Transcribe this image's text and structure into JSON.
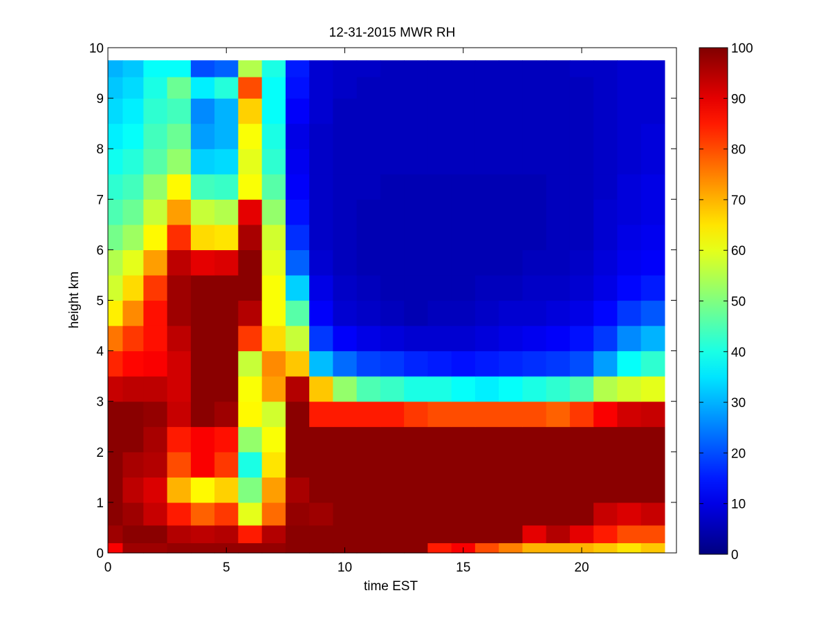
{
  "chart_data": {
    "type": "heatmap",
    "title": "12-31-2015 MWR RH",
    "xlabel": "time EST",
    "ylabel": "height km",
    "xlim": [
      0,
      24
    ],
    "ylim": [
      0,
      10
    ],
    "x_ticks": [
      0,
      5,
      10,
      15,
      20
    ],
    "y_ticks": [
      0,
      1,
      2,
      3,
      4,
      5,
      6,
      7,
      8,
      9,
      10
    ],
    "colorbar": {
      "min": 0,
      "max": 100,
      "ticks": [
        0,
        10,
        20,
        30,
        40,
        50,
        60,
        70,
        80,
        90,
        100
      ],
      "colormap": "jet"
    },
    "time_hours": [
      0.25,
      1.0,
      2.0,
      3.0,
      4.0,
      5.0,
      6.0,
      7.0,
      8.0,
      9.0,
      10.0,
      11.0,
      12.0,
      13.0,
      14.0,
      15.0,
      16.0,
      17.0,
      18.0,
      19.0,
      20.0,
      21.0,
      22.0,
      23.0
    ],
    "height_km": [
      0.05,
      0.35,
      0.75,
      1.25,
      1.75,
      2.25,
      2.75,
      3.25,
      3.75,
      4.25,
      4.75,
      5.25,
      5.75,
      6.25,
      6.75,
      7.25,
      7.75,
      8.25,
      8.75,
      9.25,
      9.6
    ],
    "rh_percent": [
      [
        88,
        97,
        97,
        98,
        98,
        98,
        98,
        98,
        99,
        99,
        99,
        99,
        99,
        99,
        85,
        88,
        80,
        75,
        70,
        70,
        70,
        68,
        65,
        68
      ],
      [
        97,
        99,
        99,
        95,
        94,
        95,
        85,
        95,
        99,
        99,
        99,
        99,
        99,
        99,
        99,
        99,
        99,
        99,
        90,
        95,
        90,
        85,
        80,
        80
      ],
      [
        99,
        97,
        93,
        85,
        78,
        82,
        60,
        77,
        98,
        97,
        99,
        99,
        99,
        99,
        99,
        99,
        99,
        99,
        99,
        99,
        99,
        93,
        91,
        93
      ],
      [
        99,
        94,
        91,
        70,
        63,
        67,
        50,
        72,
        96,
        99,
        99,
        99,
        99,
        99,
        99,
        99,
        99,
        99,
        99,
        99,
        99,
        99,
        99,
        99
      ],
      [
        99,
        96,
        95,
        80,
        88,
        82,
        40,
        65,
        99,
        99,
        99,
        99,
        99,
        99,
        99,
        99,
        99,
        99,
        99,
        99,
        99,
        99,
        99,
        99
      ],
      [
        99,
        99,
        96,
        85,
        88,
        86,
        52,
        62,
        99,
        99,
        99,
        99,
        99,
        99,
        99,
        99,
        99,
        99,
        99,
        99,
        99,
        99,
        99,
        99
      ],
      [
        99,
        99,
        98,
        93,
        99,
        97,
        63,
        58,
        99,
        85,
        85,
        85,
        85,
        82,
        80,
        80,
        80,
        80,
        80,
        78,
        82,
        88,
        92,
        93
      ],
      [
        93,
        94,
        94,
        92,
        99,
        99,
        62,
        72,
        95,
        68,
        52,
        45,
        43,
        40,
        40,
        38,
        36,
        38,
        40,
        42,
        45,
        55,
        58,
        60
      ],
      [
        84,
        87,
        88,
        92,
        99,
        99,
        57,
        74,
        68,
        31,
        23,
        19,
        18,
        16,
        15,
        14,
        15,
        16,
        17,
        18,
        20,
        28,
        38,
        42
      ],
      [
        76,
        82,
        86,
        94,
        99,
        99,
        82,
        66,
        57,
        18,
        12,
        10,
        9,
        8,
        8,
        8,
        9,
        10,
        11,
        12,
        14,
        18,
        26,
        30
      ],
      [
        64,
        74,
        86,
        97,
        99,
        99,
        95,
        62,
        46,
        12,
        8,
        7,
        6,
        5,
        6,
        6,
        7,
        8,
        8,
        9,
        10,
        13,
        18,
        21
      ],
      [
        58,
        66,
        82,
        97,
        99,
        99,
        99,
        62,
        33,
        10,
        7,
        6,
        5,
        5,
        5,
        5,
        6,
        6,
        7,
        7,
        8,
        10,
        13,
        15
      ],
      [
        55,
        60,
        72,
        94,
        90,
        91,
        99,
        60,
        22,
        8,
        6,
        5,
        5,
        5,
        5,
        5,
        5,
        5,
        6,
        6,
        7,
        9,
        11,
        12
      ],
      [
        49,
        53,
        63,
        83,
        66,
        65,
        96,
        58,
        17,
        7,
        6,
        5,
        5,
        5,
        5,
        5,
        5,
        5,
        5,
        6,
        6,
        8,
        10,
        11
      ],
      [
        45,
        48,
        57,
        72,
        57,
        55,
        90,
        52,
        14,
        7,
        6,
        5,
        5,
        5,
        5,
        5,
        5,
        5,
        5,
        6,
        6,
        8,
        9,
        10
      ],
      [
        42,
        44,
        52,
        63,
        44,
        43,
        62,
        46,
        12,
        7,
        6,
        6,
        5,
        5,
        5,
        5,
        5,
        5,
        5,
        6,
        6,
        7,
        9,
        10
      ],
      [
        39,
        41,
        46,
        52,
        33,
        34,
        60,
        42,
        11,
        7,
        6,
        6,
        6,
        6,
        6,
        6,
        6,
        6,
        6,
        6,
        6,
        7,
        8,
        9
      ],
      [
        36,
        38,
        44,
        48,
        28,
        30,
        62,
        40,
        10,
        7,
        6,
        6,
        6,
        6,
        6,
        6,
        6,
        6,
        6,
        6,
        6,
        7,
        8,
        9
      ],
      [
        34,
        36,
        42,
        44,
        26,
        30,
        67,
        38,
        12,
        8,
        6,
        6,
        6,
        6,
        6,
        6,
        6,
        6,
        6,
        6,
        6,
        7,
        8,
        8
      ],
      [
        32,
        34,
        40,
        48,
        36,
        41,
        80,
        38,
        14,
        8,
        7,
        6,
        6,
        6,
        6,
        6,
        6,
        6,
        6,
        6,
        6,
        7,
        8,
        8
      ],
      [
        30,
        32,
        38,
        38,
        20,
        22,
        55,
        40,
        15,
        8,
        7,
        7,
        6,
        6,
        6,
        6,
        6,
        6,
        6,
        6,
        7,
        7,
        8,
        8
      ]
    ]
  }
}
